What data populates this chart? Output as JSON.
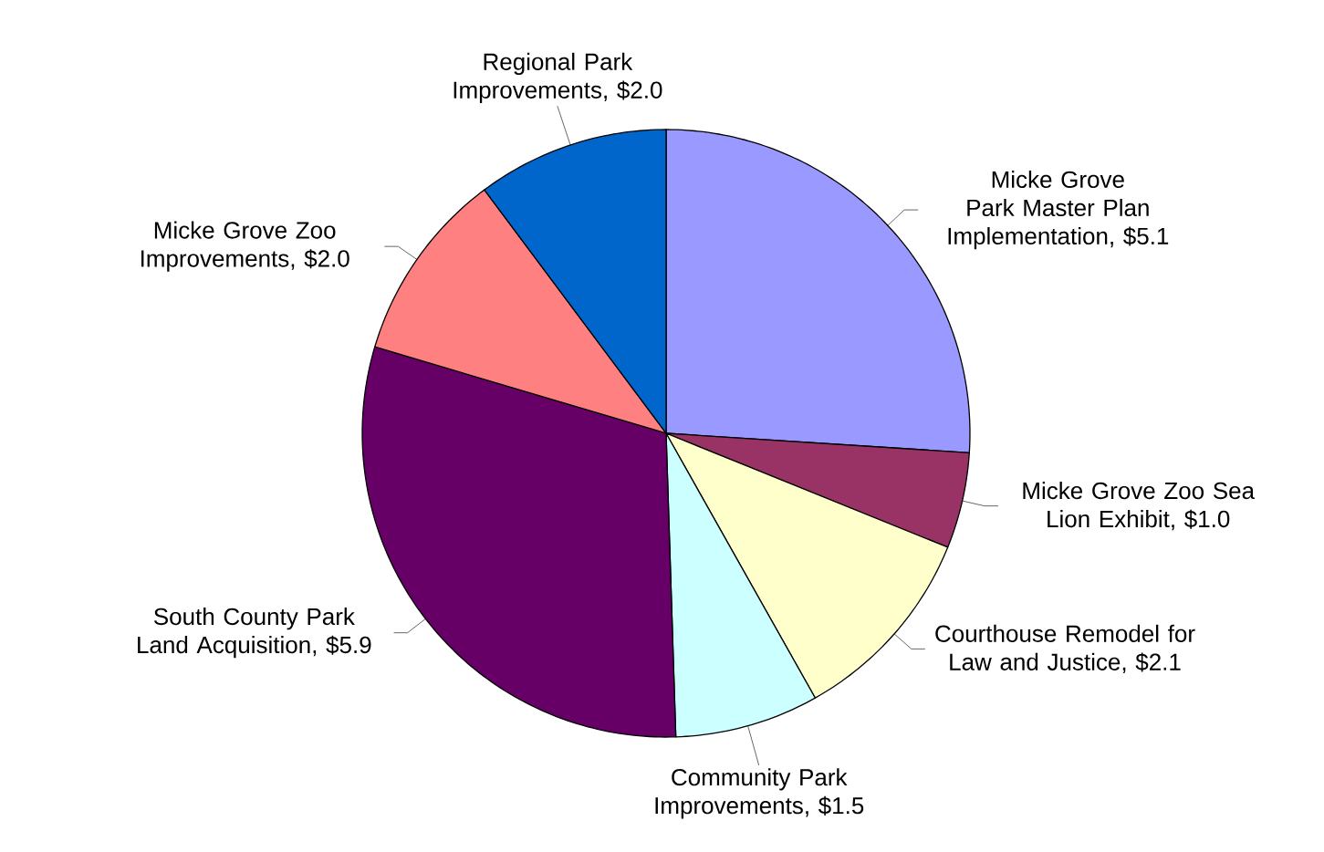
{
  "chart_data": {
    "type": "pie",
    "categories": [
      "Micke Grove Park Master Plan Implementation, $5.1",
      "Micke Grove Zoo Sea Lion Exhibit, $1.0",
      "Courthouse Remodel for Law and Justice, $2.1",
      "Community Park Improvements, $1.5",
      "South County Park Land Acquisition, $5.9",
      "Micke Grove Zoo Improvements, $2.0",
      "Regional Park Improvements, $2.0"
    ],
    "values": [
      5.1,
      1.0,
      2.1,
      1.5,
      5.9,
      2.0,
      2.0
    ],
    "colors": [
      "#9999ff",
      "#993366",
      "#ffffcc",
      "#ccffff",
      "#660066",
      "#ff8080",
      "#0066cc"
    ]
  }
}
